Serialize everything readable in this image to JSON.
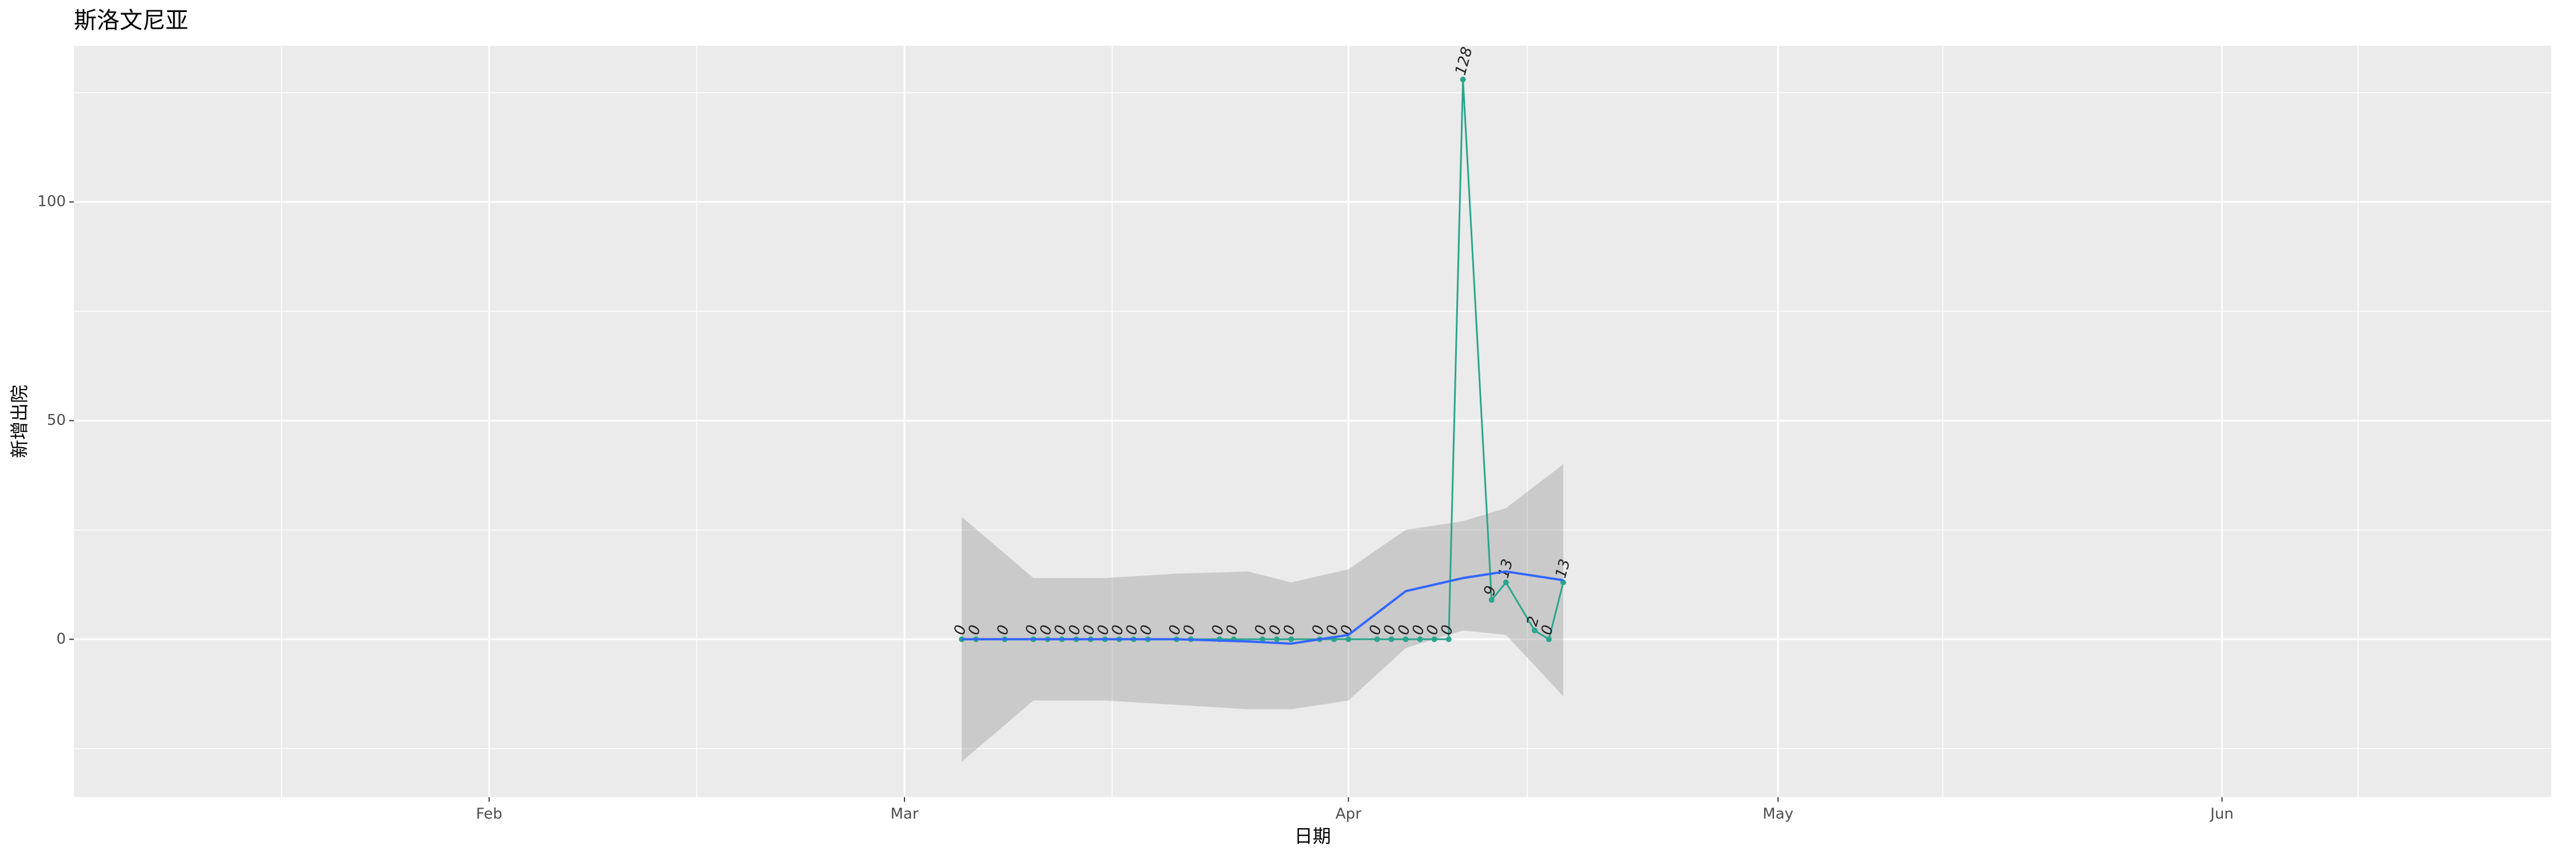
{
  "chart_data": {
    "type": "line",
    "title": "斯洛文尼亚",
    "x_label": "日期",
    "y_label": "新增出院",
    "x": [
      "03-05",
      "03-06",
      "03-08",
      "03-10",
      "03-11",
      "03-12",
      "03-13",
      "03-14",
      "03-15",
      "03-16",
      "03-17",
      "03-18",
      "03-20",
      "03-21",
      "03-23",
      "03-24",
      "03-26",
      "03-27",
      "03-28",
      "03-30",
      "03-31",
      "04-01",
      "04-03",
      "04-04",
      "04-05",
      "04-06",
      "04-07",
      "04-08",
      "04-09",
      "04-11",
      "04-12",
      "04-14",
      "04-15",
      "04-16"
    ],
    "series": [
      {
        "color": "#2aa68a",
        "values": [
          0,
          0,
          0,
          0,
          0,
          0,
          0,
          0,
          0,
          0,
          0,
          0,
          0,
          0,
          0,
          0,
          0,
          0,
          0,
          0,
          0,
          0,
          0,
          0,
          0,
          0,
          0,
          0,
          128,
          9,
          13,
          2,
          0,
          13
        ]
      }
    ],
    "smooth": {
      "color": "#3366ff",
      "x": [
        "03-05",
        "03-10",
        "03-15",
        "03-20",
        "03-25",
        "03-28",
        "04-01",
        "04-05",
        "04-09",
        "04-12",
        "04-16"
      ],
      "values": [
        0,
        0,
        0,
        0,
        -0.5,
        -1,
        1,
        11,
        14,
        15.5,
        13.5
      ],
      "lower": [
        -28,
        -14,
        -14,
        -15,
        -16,
        -16,
        -14,
        -2,
        2,
        1,
        -13
      ],
      "upper": [
        28,
        14,
        14,
        15,
        15.5,
        13,
        16,
        25,
        27,
        30,
        40
      ]
    },
    "xlim": [
      "01-03",
      "06-24"
    ],
    "xticks": [
      {
        "value": "02-01",
        "label": "Feb"
      },
      {
        "value": "03-01",
        "label": "Mar"
      },
      {
        "value": "04-01",
        "label": "Apr"
      },
      {
        "value": "05-01",
        "label": "May"
      },
      {
        "value": "06-01",
        "label": "Jun"
      }
    ],
    "ylim": [
      -36.1,
      135.7
    ],
    "yticks": [
      0,
      50,
      100
    ],
    "grid": true
  }
}
